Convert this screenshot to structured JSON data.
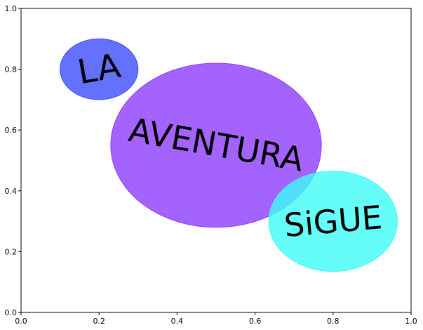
{
  "chart_data": {
    "type": "scatter",
    "title": "",
    "xlabel": "",
    "ylabel": "",
    "xlim": [
      0,
      1
    ],
    "ylim": [
      0,
      1
    ],
    "grid": false,
    "x_ticks": [
      "0.0",
      "0.2",
      "0.4",
      "0.6",
      "0.8",
      "1.0"
    ],
    "y_ticks": [
      "0.0",
      "0.2",
      "0.4",
      "0.6",
      "0.8",
      "1.0"
    ],
    "bubbles": [
      {
        "word": "LA",
        "x": 0.2,
        "y": 0.8,
        "radius": 0.1,
        "color": "#3d4dfb",
        "alpha": 0.8,
        "rotation": -10
      },
      {
        "word": "AVENTURA",
        "x": 0.5,
        "y": 0.55,
        "radius": 0.27,
        "color": "#8e3cfd",
        "alpha": 0.8,
        "rotation": 10
      },
      {
        "word": "SiGUE",
        "x": 0.8,
        "y": 0.3,
        "radius": 0.165,
        "color": "#3dfdf6",
        "alpha": 0.8,
        "rotation": -5
      }
    ]
  }
}
